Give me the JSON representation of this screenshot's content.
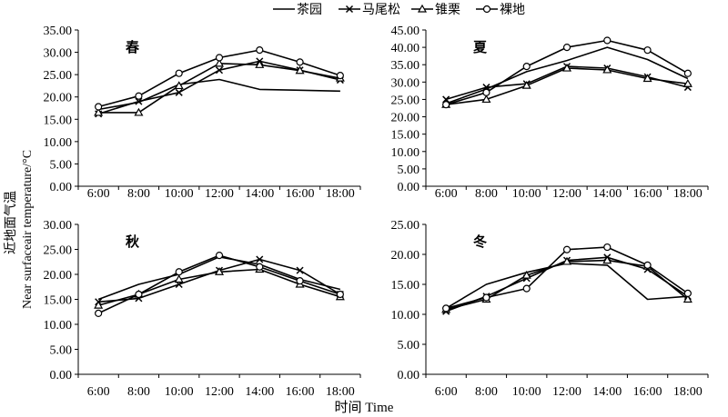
{
  "ylabel_cn": "近地面气温",
  "ylabel_en": "Near surfaceair temperature/°C",
  "xlabel": "时间 Time",
  "chart_data": [
    {
      "type": "line",
      "title": "春",
      "ylim": [
        0,
        35
      ],
      "yticks": [
        "0.00",
        "5.00",
        "10.00",
        "15.00",
        "20.00",
        "25.00",
        "30.00",
        "35.00"
      ],
      "categories": [
        "6:00",
        "8:00",
        "10:00",
        "12:00",
        "14:00",
        "16:00",
        "18:00"
      ],
      "series": [
        {
          "name": "茶园",
          "marker": "none",
          "values": [
            17.2,
            18.8,
            22.8,
            23.9,
            21.7,
            21.5,
            21.3
          ]
        },
        {
          "name": "马尾松",
          "marker": "x",
          "values": [
            16.2,
            19.0,
            21.0,
            26.0,
            28.0,
            26.0,
            23.8
          ]
        },
        {
          "name": "锥栗",
          "marker": "triangle",
          "values": [
            16.5,
            16.5,
            22.5,
            27.5,
            27.2,
            25.9,
            24.2
          ]
        },
        {
          "name": "裸地",
          "marker": "circle",
          "values": [
            17.8,
            20.2,
            25.3,
            28.8,
            30.5,
            27.8,
            24.8
          ]
        }
      ]
    },
    {
      "type": "line",
      "title": "夏",
      "ylim": [
        0,
        45
      ],
      "yticks": [
        "0.00",
        "5.00",
        "10.00",
        "15.00",
        "20.00",
        "25.00",
        "30.00",
        "35.00",
        "40.00",
        "45.00"
      ],
      "categories": [
        "6:00",
        "8:00",
        "10:00",
        "12:00",
        "14:00",
        "16:00",
        "18:00"
      ],
      "series": [
        {
          "name": "茶园",
          "marker": "none",
          "values": [
            23.8,
            28.0,
            33.0,
            36.2,
            40.0,
            36.5,
            31.0
          ]
        },
        {
          "name": "马尾松",
          "marker": "x",
          "values": [
            25.0,
            28.5,
            29.5,
            34.5,
            34.0,
            31.5,
            28.5
          ]
        },
        {
          "name": "锥栗",
          "marker": "triangle",
          "values": [
            23.5,
            25.0,
            29.0,
            34.0,
            33.5,
            31.0,
            29.5
          ]
        },
        {
          "name": "裸地",
          "marker": "circle",
          "values": [
            23.5,
            27.0,
            34.5,
            40.0,
            42.0,
            39.2,
            32.5
          ]
        }
      ]
    },
    {
      "type": "line",
      "title": "秋",
      "ylim": [
        0,
        30
      ],
      "yticks": [
        "0.00",
        "5.00",
        "10.00",
        "15.00",
        "20.00",
        "25.00",
        "30.00"
      ],
      "categories": [
        "6:00",
        "8:00",
        "10:00",
        "12:00",
        "14:00",
        "16:00",
        "18:00"
      ],
      "series": [
        {
          "name": "茶园",
          "marker": "none",
          "values": [
            15.0,
            18.0,
            20.0,
            23.5,
            22.0,
            19.0,
            17.0
          ]
        },
        {
          "name": "马尾松",
          "marker": "x",
          "values": [
            14.5,
            15.2,
            18.0,
            20.8,
            23.0,
            20.8,
            16.0
          ]
        },
        {
          "name": "锥栗",
          "marker": "triangle",
          "values": [
            13.8,
            16.0,
            19.0,
            20.5,
            21.0,
            18.0,
            15.5
          ]
        },
        {
          "name": "裸地",
          "marker": "circle",
          "values": [
            12.2,
            16.0,
            20.5,
            23.8,
            21.5,
            18.7,
            16.0
          ]
        }
      ]
    },
    {
      "type": "line",
      "title": "冬",
      "ylim": [
        0,
        25
      ],
      "yticks": [
        "0.00",
        "5.00",
        "10.00",
        "15.00",
        "20.00",
        "25.00"
      ],
      "categories": [
        "6:00",
        "8:00",
        "10:00",
        "12:00",
        "14:00",
        "16:00",
        "18:00"
      ],
      "series": [
        {
          "name": "茶园",
          "marker": "none",
          "values": [
            11.0,
            15.0,
            17.0,
            18.5,
            18.2,
            12.5,
            13.0
          ]
        },
        {
          "name": "马尾松",
          "marker": "x",
          "values": [
            10.5,
            13.0,
            16.0,
            19.0,
            19.5,
            17.5,
            13.0
          ]
        },
        {
          "name": "锥栗",
          "marker": "triangle",
          "values": [
            10.8,
            12.5,
            16.5,
            18.8,
            19.0,
            18.0,
            12.5
          ]
        },
        {
          "name": "裸地",
          "marker": "circle",
          "values": [
            11.0,
            12.8,
            14.3,
            20.8,
            21.2,
            18.2,
            13.5
          ]
        }
      ]
    }
  ]
}
